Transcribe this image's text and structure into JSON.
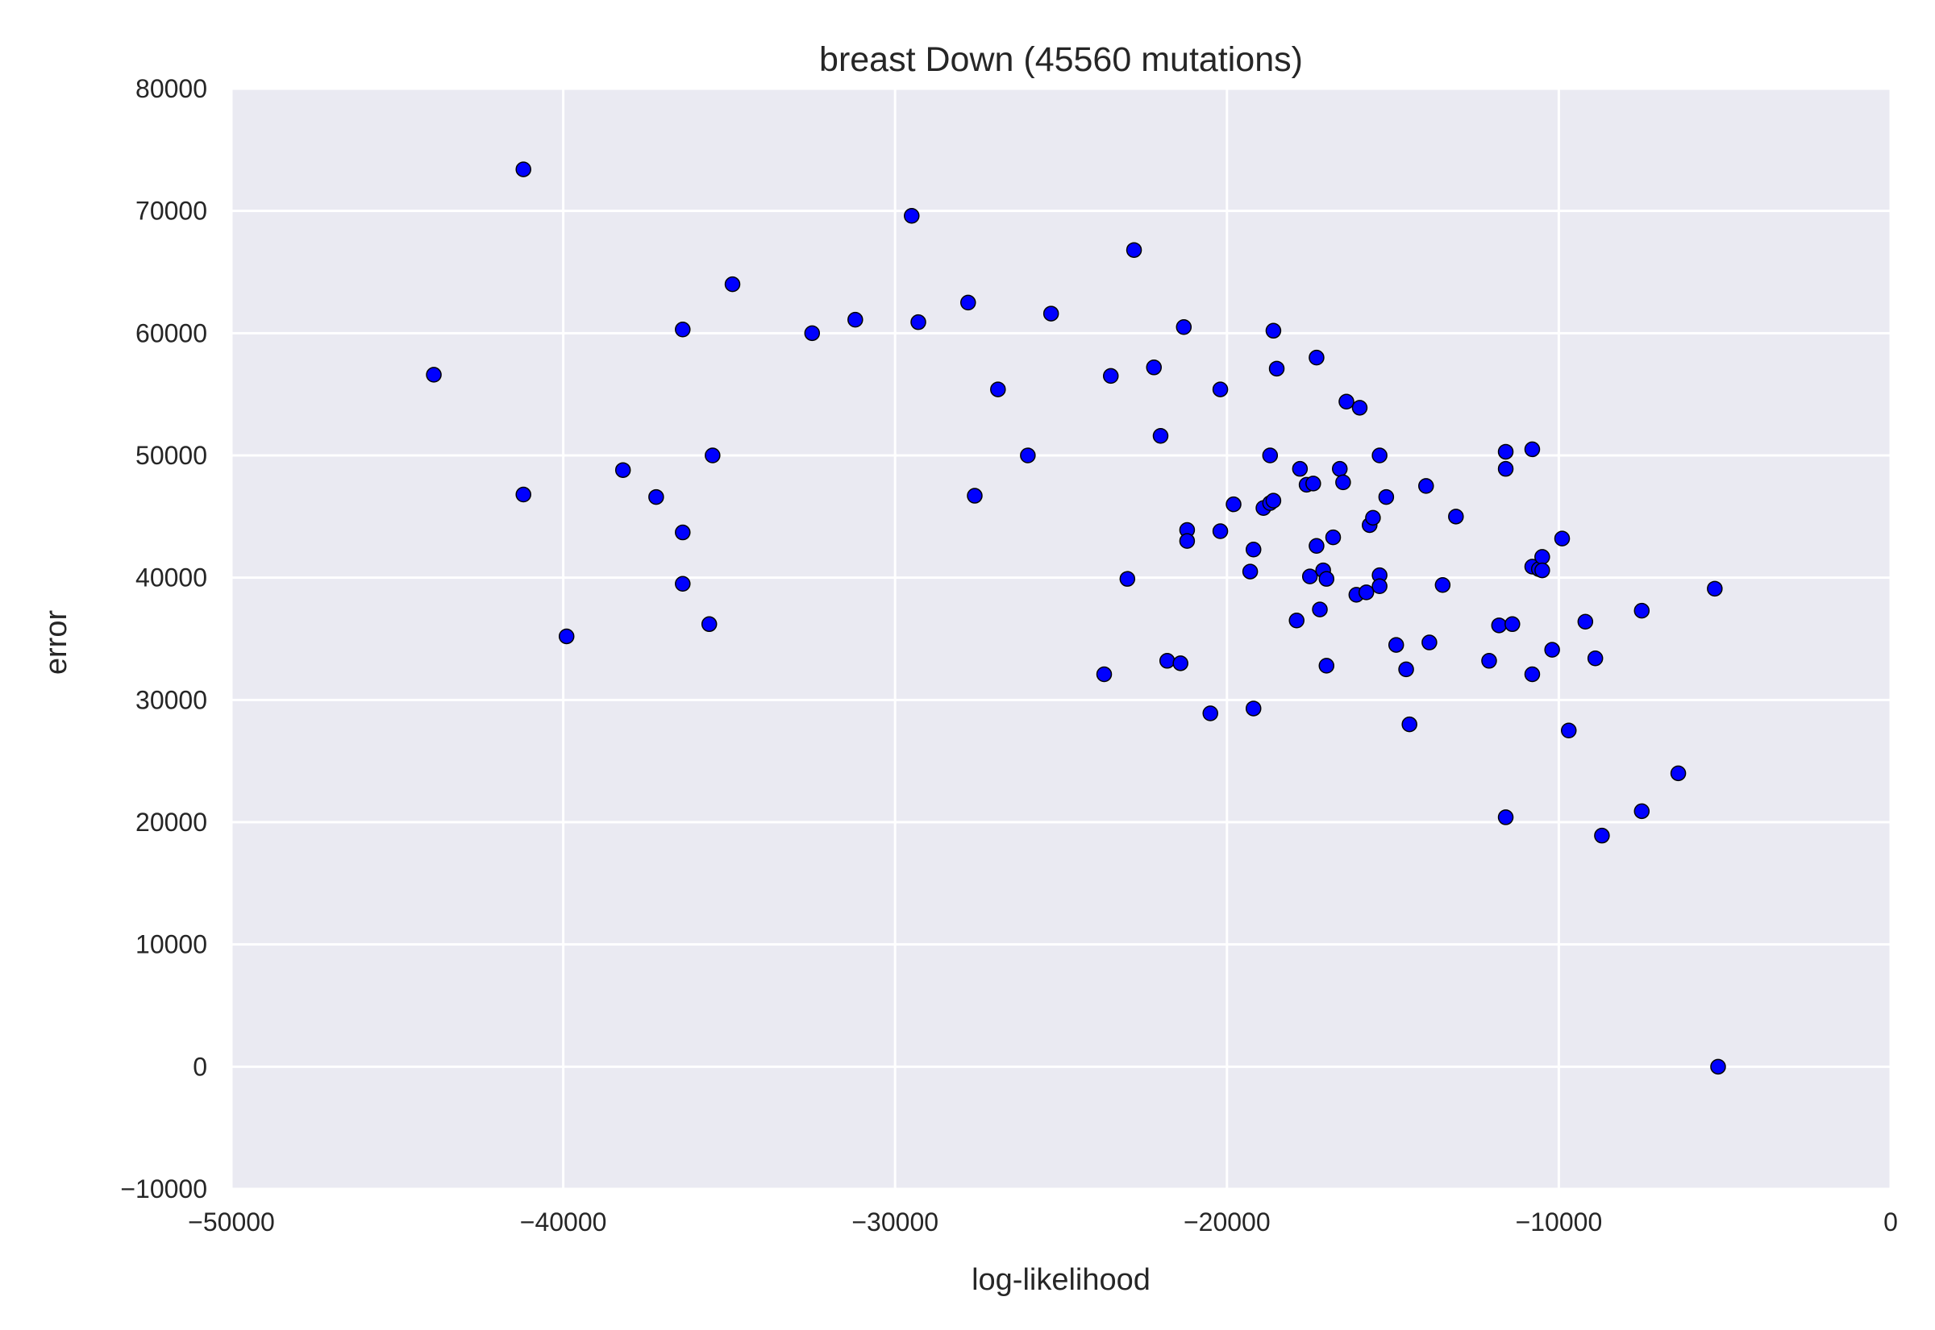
{
  "chart_data": {
    "type": "scatter",
    "title": "breast Down (45560 mutations)",
    "xlabel": "log-likelihood",
    "ylabel": "error",
    "xlim": [
      -50000,
      0
    ],
    "ylim": [
      -10000,
      80000
    ],
    "xticks": [
      -50000,
      -40000,
      -30000,
      -20000,
      -10000,
      0
    ],
    "yticks": [
      -10000,
      0,
      10000,
      20000,
      30000,
      40000,
      50000,
      60000,
      70000,
      80000
    ],
    "xtick_labels": [
      "−50000",
      "−40000",
      "−30000",
      "−20000",
      "−10000",
      "0"
    ],
    "ytick_labels": [
      "−10000",
      "0",
      "10000",
      "20000",
      "30000",
      "40000",
      "50000",
      "60000",
      "70000",
      "80000"
    ],
    "grid": true,
    "style": {
      "background": "#eaeaf2",
      "grid_color": "#ffffff",
      "marker_color": "#0000ff",
      "marker_edge": "#000000"
    },
    "points": [
      [
        -43900,
        56600
      ],
      [
        -41200,
        73400
      ],
      [
        -41200,
        46800
      ],
      [
        -39900,
        35200
      ],
      [
        -38200,
        48800
      ],
      [
        -37200,
        46600
      ],
      [
        -36400,
        60300
      ],
      [
        -36400,
        43700
      ],
      [
        -36400,
        39500
      ],
      [
        -35500,
        50000
      ],
      [
        -35600,
        36200
      ],
      [
        -34900,
        64000
      ],
      [
        -32500,
        60000
      ],
      [
        -31200,
        61100
      ],
      [
        -29500,
        69600
      ],
      [
        -29300,
        60900
      ],
      [
        -27800,
        62500
      ],
      [
        -27600,
        46700
      ],
      [
        -26900,
        55400
      ],
      [
        -26000,
        50000
      ],
      [
        -25300,
        61600
      ],
      [
        -23700,
        32100
      ],
      [
        -23500,
        56500
      ],
      [
        -23000,
        39900
      ],
      [
        -22800,
        66800
      ],
      [
        -22200,
        57200
      ],
      [
        -22000,
        51600
      ],
      [
        -21800,
        33200
      ],
      [
        -21400,
        33000
      ],
      [
        -21300,
        60500
      ],
      [
        -21200,
        43900
      ],
      [
        -21200,
        43000
      ],
      [
        -20500,
        28900
      ],
      [
        -20200,
        55400
      ],
      [
        -20200,
        43800
      ],
      [
        -19800,
        46000
      ],
      [
        -19300,
        40500
      ],
      [
        -19200,
        42300
      ],
      [
        -19200,
        29300
      ],
      [
        -18900,
        45700
      ],
      [
        -18700,
        50000
      ],
      [
        -18700,
        46100
      ],
      [
        -18600,
        46300
      ],
      [
        -18600,
        60200
      ],
      [
        -18500,
        57100
      ],
      [
        -17900,
        36500
      ],
      [
        -17800,
        48900
      ],
      [
        -17600,
        47600
      ],
      [
        -17500,
        40100
      ],
      [
        -17400,
        47700
      ],
      [
        -17300,
        58000
      ],
      [
        -17300,
        42600
      ],
      [
        -17200,
        37400
      ],
      [
        -17100,
        40600
      ],
      [
        -17000,
        39900
      ],
      [
        -17000,
        32800
      ],
      [
        -16800,
        43300
      ],
      [
        -16600,
        48900
      ],
      [
        -16500,
        47800
      ],
      [
        -16400,
        54400
      ],
      [
        -16100,
        38600
      ],
      [
        -16000,
        53900
      ],
      [
        -15800,
        38800
      ],
      [
        -15700,
        44300
      ],
      [
        -15600,
        44900
      ],
      [
        -15400,
        50000
      ],
      [
        -15400,
        40200
      ],
      [
        -15400,
        39300
      ],
      [
        -15200,
        46600
      ],
      [
        -14900,
        34500
      ],
      [
        -14600,
        32500
      ],
      [
        -14500,
        28000
      ],
      [
        -14000,
        47500
      ],
      [
        -13900,
        34700
      ],
      [
        -13500,
        39400
      ],
      [
        -13100,
        45000
      ],
      [
        -12100,
        33200
      ],
      [
        -11800,
        36100
      ],
      [
        -11600,
        50300
      ],
      [
        -11600,
        48900
      ],
      [
        -11600,
        20400
      ],
      [
        -11400,
        36200
      ],
      [
        -10800,
        50500
      ],
      [
        -10800,
        32100
      ],
      [
        -10800,
        40900
      ],
      [
        -10600,
        40700
      ],
      [
        -10500,
        41700
      ],
      [
        -10500,
        40600
      ],
      [
        -10200,
        34100
      ],
      [
        -9900,
        43200
      ],
      [
        -9700,
        27500
      ],
      [
        -9200,
        36400
      ],
      [
        -8900,
        33400
      ],
      [
        -8700,
        18900
      ],
      [
        -7500,
        37300
      ],
      [
        -7500,
        20900
      ],
      [
        -6400,
        24000
      ],
      [
        -5300,
        39100
      ],
      [
        -5200,
        0
      ]
    ]
  }
}
